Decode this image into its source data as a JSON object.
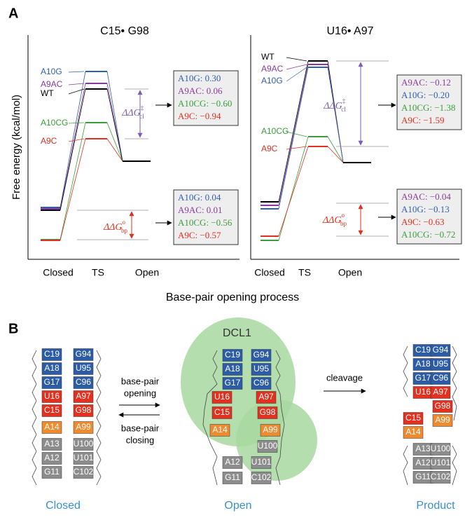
{
  "panel_a": {
    "label": "A",
    "y_axis_label": "Free energy (kcal/mol)",
    "x_axis_label": "Base-pair opening process",
    "plots": [
      {
        "title": "C15• G98",
        "x_labels": [
          "Closed",
          "TS",
          "Open"
        ],
        "level_labels": [
          {
            "text": "A10G",
            "color": "#2e5fb0"
          },
          {
            "text": "A9AC",
            "color": "#8a3a9e"
          },
          {
            "text": "WT",
            "color": "#000000"
          },
          {
            "text": "A10CG",
            "color": "#3a9e3a"
          },
          {
            "text": "A9C",
            "color": "#e0301f"
          }
        ],
        "barrier_label": {
          "symbol": "ΔΔG",
          "sup": "‡",
          "sub": "cl"
        },
        "pairing_label": {
          "symbol": "ΔΔG",
          "sup": "o",
          "sub": "bp"
        },
        "barrier_box": [
          {
            "text": "A10G: 0.30",
            "color": "#2e5fb0"
          },
          {
            "text": "A9AC: 0.06",
            "color": "#8a3a9e"
          },
          {
            "text": "A10CG: −0.60",
            "color": "#3a9e3a"
          },
          {
            "text": "A9C: −0.94",
            "color": "#e0301f"
          }
        ],
        "pairing_box": [
          {
            "text": "A10G: 0.04",
            "color": "#2e5fb0"
          },
          {
            "text": "A9AC: 0.01",
            "color": "#8a3a9e"
          },
          {
            "text": "A10CG: −0.56",
            "color": "#3a9e3a"
          },
          {
            "text": "A9C: −0.57",
            "color": "#e0301f"
          }
        ]
      },
      {
        "title": "U16• A97",
        "x_labels": [
          "Closed",
          "TS",
          "Open"
        ],
        "level_labels": [
          {
            "text": "WT",
            "color": "#000000"
          },
          {
            "text": "A9AC",
            "color": "#8a3a9e"
          },
          {
            "text": "A10G",
            "color": "#2e5fb0"
          },
          {
            "text": "A10CG",
            "color": "#3a9e3a"
          },
          {
            "text": "A9C",
            "color": "#e0301f"
          }
        ],
        "barrier_label": {
          "symbol": "ΔΔG",
          "sup": "‡",
          "sub": "cl"
        },
        "pairing_label": {
          "symbol": "ΔΔG",
          "sup": "o",
          "sub": "bp"
        },
        "barrier_box": [
          {
            "text": "A9AC: −0.12",
            "color": "#8a3a9e"
          },
          {
            "text": "A10G: −0.20",
            "color": "#2e5fb0"
          },
          {
            "text": "A10CG: −1.38",
            "color": "#3a9e3a"
          },
          {
            "text": "A9C: −1.59",
            "color": "#e0301f"
          }
        ],
        "pairing_box": [
          {
            "text": "A9AC: −0.04",
            "color": "#8a3a9e"
          },
          {
            "text": "A10G: −0.13",
            "color": "#2e5fb0"
          },
          {
            "text": "A9C: −0.63",
            "color": "#e0301f"
          },
          {
            "text": "A10CG: −0.72",
            "color": "#3a9e3a"
          }
        ]
      }
    ]
  },
  "panel_b": {
    "label": "B",
    "enzyme": "DCL1",
    "arrows": {
      "opening": [
        "base-pair",
        "opening"
      ],
      "closing": [
        "base-pair",
        "closing"
      ],
      "cleavage": "cleavage"
    },
    "state_color": "#3a8fd0",
    "stems": [
      {
        "state": "Closed",
        "nucleotides": [
          {
            "text": "C19",
            "color": "#2c5ca8"
          },
          {
            "text": "G94",
            "color": "#2c5ca8"
          },
          {
            "text": "A18",
            "color": "#2c5ca8"
          },
          {
            "text": "U95",
            "color": "#2c5ca8"
          },
          {
            "text": "G17",
            "color": "#2c5ca8"
          },
          {
            "text": "C96",
            "color": "#2c5ca8"
          },
          {
            "text": "U16",
            "color": "#e3301f"
          },
          {
            "text": "A97",
            "color": "#e3301f"
          },
          {
            "text": "C15",
            "color": "#e3301f"
          },
          {
            "text": "G98",
            "color": "#e3301f"
          },
          {
            "text": "A14",
            "color": "#ef8a2e"
          },
          {
            "text": "A99",
            "color": "#ef8a2e"
          },
          {
            "text": "A13",
            "color": "#8c8c8c"
          },
          {
            "text": "U100",
            "color": "#8c8c8c"
          },
          {
            "text": "A12",
            "color": "#8c8c8c"
          },
          {
            "text": "U101",
            "color": "#8c8c8c"
          },
          {
            "text": "G11",
            "color": "#8c8c8c"
          },
          {
            "text": "C102",
            "color": "#8c8c8c"
          }
        ]
      },
      {
        "state": "Open",
        "nucleotides": [
          {
            "text": "C19",
            "color": "#2c5ca8"
          },
          {
            "text": "G94",
            "color": "#2c5ca8"
          },
          {
            "text": "A18",
            "color": "#2c5ca8"
          },
          {
            "text": "U95",
            "color": "#2c5ca8"
          },
          {
            "text": "G17",
            "color": "#2c5ca8"
          },
          {
            "text": "C96",
            "color": "#2c5ca8"
          },
          {
            "text": "U16",
            "color": "#e3301f"
          },
          {
            "text": "A97",
            "color": "#e3301f"
          },
          {
            "text": "C15",
            "color": "#e3301f"
          },
          {
            "text": "G98",
            "color": "#e3301f"
          },
          {
            "text": "A14",
            "color": "#ef8a2e"
          },
          {
            "text": "A99",
            "color": "#ef8a2e"
          },
          {
            "text": "U100",
            "color": "#8c8c8c"
          },
          {
            "text": "A12",
            "color": "#8c8c8c"
          },
          {
            "text": "U101",
            "color": "#8c8c8c"
          },
          {
            "text": "G11",
            "color": "#8c8c8c"
          },
          {
            "text": "C102",
            "color": "#8c8c8c"
          }
        ]
      },
      {
        "state": "Product",
        "nucleotides": [
          {
            "text": "C19",
            "color": "#2c5ca8"
          },
          {
            "text": "G94",
            "color": "#2c5ca8"
          },
          {
            "text": "A18",
            "color": "#2c5ca8"
          },
          {
            "text": "U95",
            "color": "#2c5ca8"
          },
          {
            "text": "G17",
            "color": "#2c5ca8"
          },
          {
            "text": "C96",
            "color": "#2c5ca8"
          },
          {
            "text": "U16",
            "color": "#e3301f"
          },
          {
            "text": "A97",
            "color": "#e3301f"
          },
          {
            "text": "G98",
            "color": "#e3301f"
          },
          {
            "text": "A99",
            "color": "#ef8a2e"
          },
          {
            "text": "C15",
            "color": "#e3301f"
          },
          {
            "text": "A14",
            "color": "#ef8a2e"
          },
          {
            "text": "A13",
            "color": "#8c8c8c"
          },
          {
            "text": "U100",
            "color": "#8c8c8c"
          },
          {
            "text": "A12",
            "color": "#8c8c8c"
          },
          {
            "text": "U101",
            "color": "#8c8c8c"
          },
          {
            "text": "G11",
            "color": "#8c8c8c"
          },
          {
            "text": "C102",
            "color": "#8c8c8c"
          }
        ]
      }
    ]
  }
}
